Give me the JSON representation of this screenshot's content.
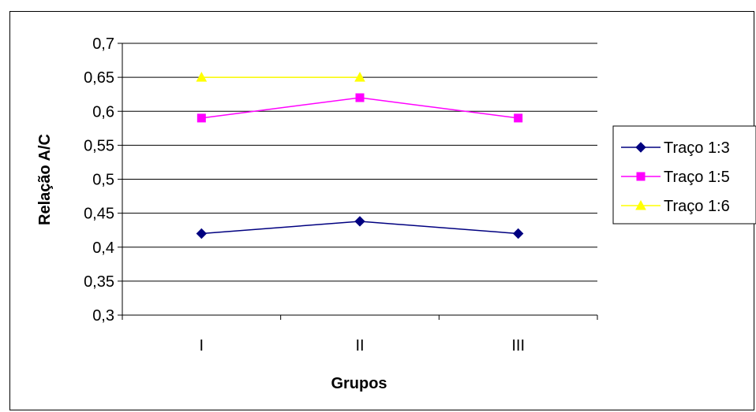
{
  "chart_data": {
    "type": "line",
    "title": "",
    "xlabel": "Grupos",
    "ylabel": "Relação A/C",
    "categories": [
      "I",
      "II",
      "III"
    ],
    "ylim": [
      0.3,
      0.7
    ],
    "yticks": [
      0.3,
      0.35,
      0.4,
      0.45,
      0.5,
      0.55,
      0.6,
      0.65,
      0.7
    ],
    "ytick_labels": [
      "0,3",
      "0,35",
      "0,4",
      "0,45",
      "0,5",
      "0,55",
      "0,6",
      "0,65",
      "0,7"
    ],
    "grid": "horizontal",
    "legend_position": "right",
    "series": [
      {
        "name": "Traço 1:3",
        "values": [
          0.42,
          0.438,
          0.42
        ],
        "color": "#000080",
        "marker": "diamond"
      },
      {
        "name": "Traço 1:5",
        "values": [
          0.59,
          0.62,
          0.59
        ],
        "color": "#ff00ff",
        "marker": "square"
      },
      {
        "name": "Traço 1:6",
        "values": [
          0.65,
          0.65,
          null
        ],
        "color": "#ffff00",
        "marker": "triangle"
      }
    ]
  }
}
